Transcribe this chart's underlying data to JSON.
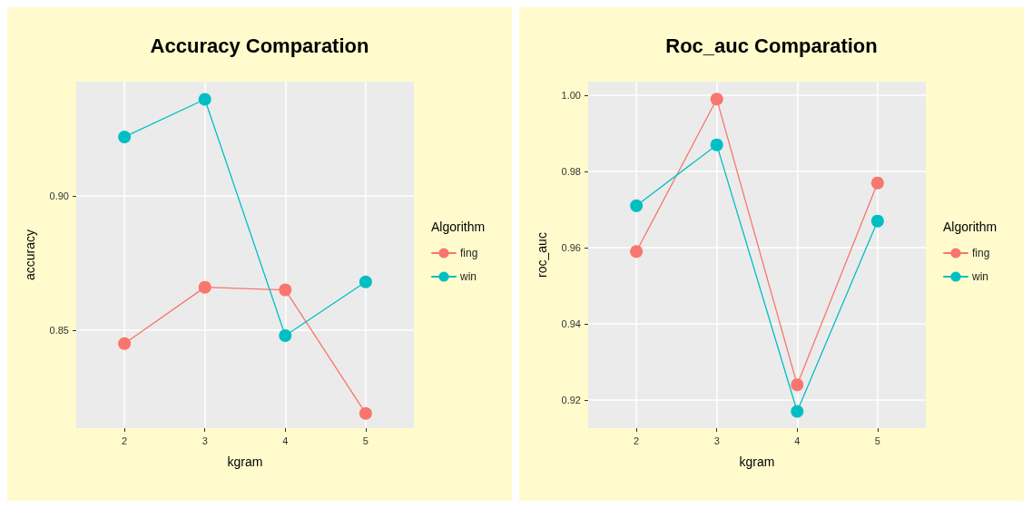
{
  "chart_data": [
    {
      "type": "line",
      "title": "Accuracy Comparation",
      "xlabel": "kgram",
      "ylabel": "accuracy",
      "legend_title": "Algorithm",
      "x": [
        2,
        3,
        4,
        5
      ],
      "xlim": [
        1.4,
        5.6
      ],
      "xticks": [
        2,
        3,
        4,
        5
      ],
      "ylim": [
        0.8135,
        0.9426
      ],
      "yticks": [
        0.85,
        {
          "value": 0.9,
          "label": "0.90"
        }
      ],
      "grid": true,
      "legend": "right",
      "marker": "circle",
      "line_style": "solid",
      "series": [
        {
          "name": "fing",
          "color": "#f8766d",
          "values": [
            0.845,
            0.866,
            0.865,
            0.819
          ]
        },
        {
          "name": "win",
          "color": "#00bfc4",
          "values": [
            0.922,
            0.936,
            0.848,
            0.868
          ]
        }
      ]
    },
    {
      "type": "line",
      "title": "Roc_auc Comparation",
      "xlabel": "kgram",
      "ylabel": "roc_auc",
      "legend_title": "Algorithm",
      "x": [
        2,
        3,
        4,
        5
      ],
      "xlim": [
        1.4,
        5.6
      ],
      "xticks": [
        2,
        3,
        4,
        5
      ],
      "ylim": [
        0.9126,
        1.0036
      ],
      "yticks": [
        {
          "value": 0.92,
          "label": "0.92"
        },
        {
          "value": 0.94,
          "label": "0.94"
        },
        {
          "value": 0.96,
          "label": "0.96"
        },
        {
          "value": 0.98,
          "label": "0.98"
        },
        {
          "value": 1.0,
          "label": "1.00"
        }
      ],
      "grid": true,
      "legend": "right",
      "marker": "circle",
      "line_style": "solid",
      "series": [
        {
          "name": "fing",
          "color": "#f8766d",
          "values": [
            0.959,
            0.999,
            0.924,
            0.977
          ]
        },
        {
          "name": "win",
          "color": "#00bfc4",
          "values": [
            0.971,
            0.987,
            0.917,
            0.967
          ]
        }
      ]
    }
  ]
}
